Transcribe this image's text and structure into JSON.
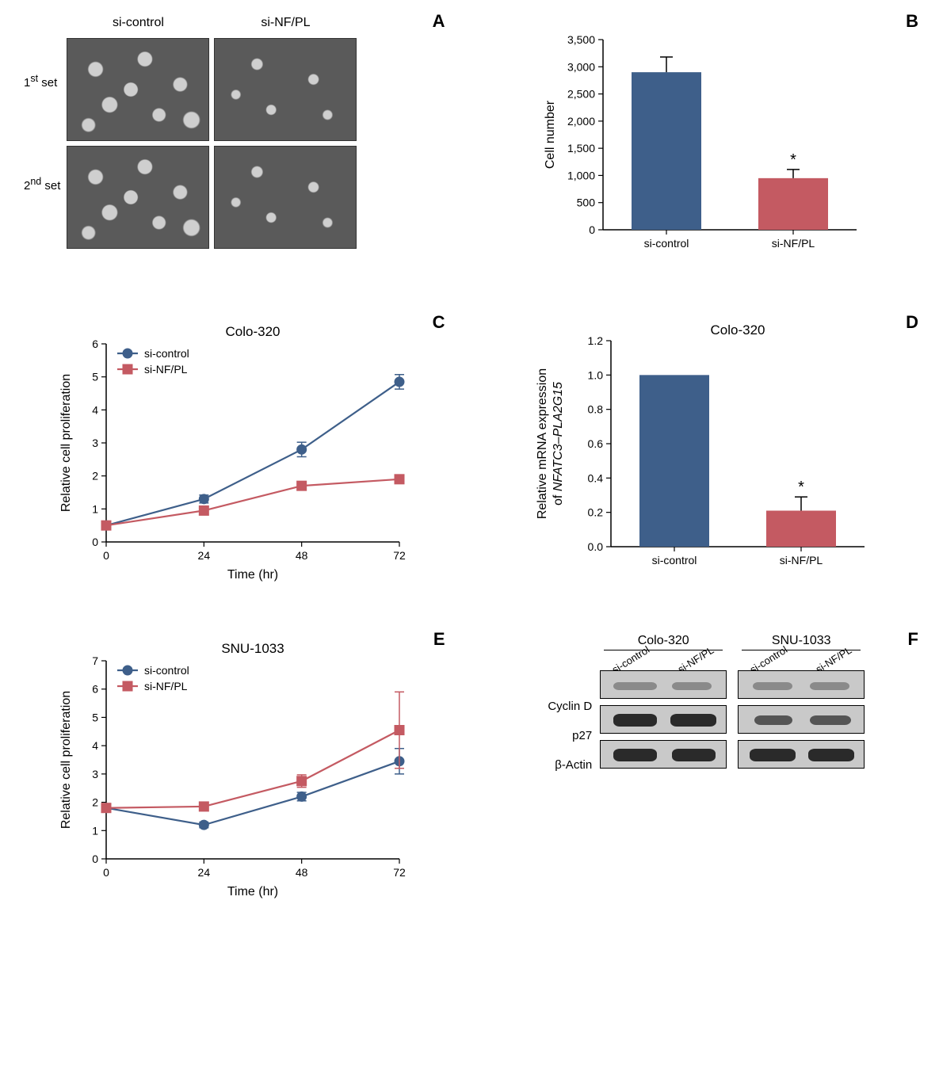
{
  "colors": {
    "seriesBlue": "#3e5f8a",
    "seriesRed": "#c45a62",
    "axis": "#000000",
    "bg": "#ffffff"
  },
  "panelA": {
    "label": "A",
    "colHeaders": [
      "si-control",
      "si-NF/PL"
    ],
    "rowHeaders": [
      "1st set",
      "2nd set"
    ],
    "rowHeadersHtml": [
      "1<sup>st</sup> set",
      "2<sup>nd</sup> set"
    ]
  },
  "panelB": {
    "label": "B",
    "type": "bar",
    "yTitle": "Cell number",
    "categories": [
      "si-control",
      "si-NF/PL"
    ],
    "values": [
      2900,
      950
    ],
    "errors": [
      280,
      160
    ],
    "sigMarks": [
      "",
      "*"
    ],
    "barColors": [
      "#3e5f8a",
      "#c45a62"
    ],
    "ylim": [
      0,
      3500
    ],
    "ytick_step": 500,
    "bar_width": 0.55,
    "axis_fontsize": 14,
    "title_fontsize": 16
  },
  "panelC": {
    "label": "C",
    "type": "line",
    "title": "Colo-320",
    "xTitle": "Time (hr)",
    "yTitle": "Relative cell proliferation",
    "x": [
      0,
      24,
      48,
      72
    ],
    "ylim": [
      0,
      6
    ],
    "ytick_step": 1,
    "xlim": [
      0,
      72
    ],
    "xtick_step": 24,
    "series": [
      {
        "name": "si-control",
        "color": "#3e5f8a",
        "marker": "circle",
        "y": [
          0.5,
          1.3,
          2.8,
          4.85
        ],
        "err": [
          0,
          0.12,
          0.22,
          0.22
        ]
      },
      {
        "name": "si-NF/PL",
        "color": "#c45a62",
        "marker": "square",
        "y": [
          0.5,
          0.95,
          1.7,
          1.9
        ],
        "err": [
          0,
          0.08,
          0.12,
          0.08
        ]
      }
    ],
    "legend_pos": "upper-left",
    "line_width": 2.2,
    "marker_size": 6,
    "axis_fontsize": 14,
    "title_fontsize": 17
  },
  "panelD": {
    "label": "D",
    "type": "bar",
    "title": "Colo-320",
    "yTitle": "Relative mRNA expression\nof NFATC3–PLA2G15",
    "yTitleLines": [
      "Relative mRNA expression",
      "of "
    ],
    "yTitleItalic": "NFATC3–PLA2G15",
    "categories": [
      "si-control",
      "si-NF/PL"
    ],
    "values": [
      1.0,
      0.21
    ],
    "errors": [
      0,
      0.08
    ],
    "sigMarks": [
      "",
      "*"
    ],
    "barColors": [
      "#3e5f8a",
      "#c45a62"
    ],
    "ylim": [
      0,
      1.2
    ],
    "ytick_step": 0.2,
    "bar_width": 0.55,
    "axis_fontsize": 14,
    "title_fontsize": 17
  },
  "panelE": {
    "label": "E",
    "type": "line",
    "title": "SNU-1033",
    "xTitle": "Time (hr)",
    "yTitle": "Relative cell proliferation",
    "x": [
      0,
      24,
      48,
      72
    ],
    "ylim": [
      0,
      7
    ],
    "ytick_step": 1,
    "xlim": [
      0,
      72
    ],
    "xtick_step": 24,
    "series": [
      {
        "name": "si-control",
        "color": "#3e5f8a",
        "marker": "circle",
        "y": [
          1.8,
          1.2,
          2.2,
          3.45
        ],
        "err": [
          0,
          0.1,
          0.15,
          0.45
        ]
      },
      {
        "name": "si-NF/PL",
        "color": "#c45a62",
        "marker": "square",
        "y": [
          1.8,
          1.85,
          2.75,
          4.55
        ],
        "err": [
          0,
          0.1,
          0.22,
          1.35
        ]
      }
    ],
    "legend_pos": "upper-left",
    "line_width": 2.2,
    "marker_size": 6,
    "axis_fontsize": 14,
    "title_fontsize": 17
  },
  "panelF": {
    "label": "F",
    "groups": [
      "Colo-320",
      "SNU-1033"
    ],
    "lanes": [
      "si-control",
      "si-NF/PL"
    ],
    "proteins": [
      "Cyclin D",
      "p27",
      "β-Actin"
    ],
    "bands": {
      "Colo-320": {
        "Cyclin D": [
          {
            "intensity": "faint",
            "w": 55,
            "x": 16
          },
          {
            "intensity": "faint",
            "w": 50,
            "x": 90
          }
        ],
        "p27": [
          {
            "intensity": "strong",
            "w": 55,
            "x": 16
          },
          {
            "intensity": "strong",
            "w": 58,
            "x": 88
          }
        ],
        "β-Actin": [
          {
            "intensity": "strong",
            "w": 55,
            "x": 16
          },
          {
            "intensity": "strong",
            "w": 55,
            "x": 90
          }
        ]
      },
      "SNU-1033": {
        "Cyclin D": [
          {
            "intensity": "faint",
            "w": 50,
            "x": 18
          },
          {
            "intensity": "faint",
            "w": 50,
            "x": 90
          }
        ],
        "p27": [
          {
            "intensity": "medium",
            "w": 48,
            "x": 20
          },
          {
            "intensity": "medium",
            "w": 52,
            "x": 90
          }
        ],
        "β-Actin": [
          {
            "intensity": "strong",
            "w": 58,
            "x": 14
          },
          {
            "intensity": "strong",
            "w": 58,
            "x": 88
          }
        ]
      }
    }
  }
}
